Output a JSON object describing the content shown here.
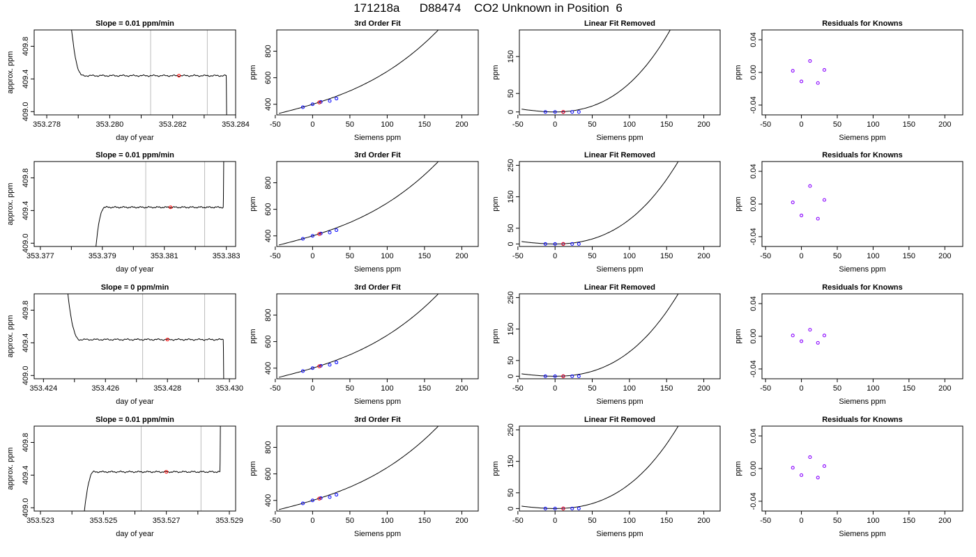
{
  "page": {
    "title": "171218a      D88474    CO2 Unknown in Position  6"
  },
  "chart_data": [
    {
      "type": "line",
      "row": 1,
      "panel": "timeseries",
      "title": "Slope =  0.01  ppm/min",
      "xlabel": "day of year",
      "ylabel": "approx. ppm",
      "xlim": [
        353.2776,
        353.284
      ],
      "ylim": [
        408.96,
        410.0
      ],
      "xticks": [
        353.278,
        353.28,
        353.282,
        353.284
      ],
      "xtick_labels": [
        "353.278",
        "353.280",
        "353.282",
        "353.284"
      ],
      "minor_xticks": [
        353.279,
        353.281,
        353.283
      ],
      "yticks": [
        409.0,
        409.4,
        409.8
      ],
      "ytick_labels": [
        "409.0",
        "409.4",
        "409.8"
      ],
      "level": 409.44,
      "start_x": 353.2787,
      "end_x": 353.2837,
      "start_kind": "down",
      "end_kind": "down",
      "vlines": [
        353.2813,
        353.2831
      ],
      "marker": {
        "x": 353.2822,
        "y": 409.44,
        "color": "#ff0000"
      }
    },
    {
      "type": "line",
      "row": 1,
      "panel": "fit",
      "title": "3rd Order Fit",
      "xlabel": "Siemens ppm",
      "ylabel": "ppm",
      "xlim": [
        -48,
        222
      ],
      "ylim": [
        320,
        960
      ],
      "xticks": [
        -50,
        0,
        50,
        100,
        150,
        200
      ],
      "xtick_labels": [
        "-50",
        "0",
        "50",
        "100",
        "150",
        "200"
      ],
      "yticks": [
        400,
        600,
        800
      ],
      "ytick_labels": [
        "400",
        "600",
        "800"
      ],
      "curve": {
        "x_range": [
          -45,
          215
        ],
        "coef": [
          400,
          1.7,
          0.005,
          2.75e-05
        ]
      },
      "known_points": [
        [
          -13,
          378
        ],
        [
          0,
          400
        ],
        [
          11,
          418
        ],
        [
          23,
          425
        ],
        [
          32,
          443
        ]
      ],
      "unknown_point": [
        9,
        414
      ],
      "line_color": "#000000",
      "point_color": "#0000ff",
      "unknown_color": "#ff0000"
    },
    {
      "type": "line",
      "row": 1,
      "panel": "linear_removed",
      "title": "Linear Fit Removed",
      "xlabel": "Siemens ppm",
      "ylabel": "ppm",
      "xlim": [
        -48,
        222
      ],
      "ylim": [
        -8,
        222
      ],
      "xticks": [
        -50,
        0,
        50,
        100,
        150,
        200
      ],
      "xtick_labels": [
        "-50",
        "0",
        "50",
        "100",
        "150",
        "200"
      ],
      "yticks": [
        0,
        50,
        150
      ],
      "ytick_labels": [
        "0",
        "50",
        "150"
      ],
      "curve": {
        "x_range": [
          -45,
          215
        ],
        "coef": [
          0,
          0,
          0.005,
          2.75e-05
        ]
      },
      "known_points": [
        [
          -13,
          0
        ],
        [
          0,
          0
        ],
        [
          11,
          0
        ],
        [
          23,
          0
        ],
        [
          32,
          0
        ]
      ],
      "unknown_point": [
        11,
        0
      ],
      "line_color": "#000000",
      "point_color": "#0000ff",
      "unknown_color": "#ff0000"
    },
    {
      "type": "scatter",
      "row": 1,
      "panel": "residuals",
      "title": "Residuals for Knowns",
      "xlabel": "Siemens ppm",
      "ylabel": "ppm",
      "xlim": [
        -55,
        225
      ],
      "ylim": [
        -0.052,
        0.052
      ],
      "xticks": [
        -50,
        0,
        50,
        100,
        150,
        200
      ],
      "xtick_labels": [
        "-50",
        "0",
        "50",
        "100",
        "150",
        "200"
      ],
      "yticks": [
        -0.04,
        0.0,
        0.04
      ],
      "ytick_labels": [
        "-0.04",
        "0.00",
        "0.04"
      ],
      "points": [
        [
          -12,
          0.002
        ],
        [
          0,
          -0.011
        ],
        [
          12,
          0.014
        ],
        [
          23,
          -0.013
        ],
        [
          32,
          0.003
        ]
      ],
      "point_color": "#8800ff"
    },
    {
      "type": "line",
      "row": 2,
      "panel": "timeseries",
      "title": "Slope =  0.01  ppm/min",
      "xlabel": "day of year",
      "ylabel": "approx. ppm",
      "xlim": [
        353.3768,
        353.3833
      ],
      "ylim": [
        408.96,
        410.0
      ],
      "xticks": [
        353.377,
        353.379,
        353.381,
        353.383
      ],
      "xtick_labels": [
        "353.377",
        "353.379",
        "353.381",
        "353.383"
      ],
      "minor_xticks": [
        353.378,
        353.38,
        353.382
      ],
      "yticks": [
        409.0,
        409.4,
        409.8
      ],
      "ytick_labels": [
        "409.0",
        "409.4",
        "409.8"
      ],
      "level": 409.44,
      "start_x": 353.3787,
      "end_x": 353.3829,
      "start_kind": "up",
      "end_kind": "up",
      "vlines": [
        353.3804,
        353.3823
      ],
      "marker": {
        "x": 353.3812,
        "y": 409.44,
        "color": "#ff0000"
      }
    },
    {
      "type": "line",
      "row": 2,
      "panel": "fit",
      "title": "3rd Order Fit",
      "xlabel": "Siemens ppm",
      "ylabel": "ppm",
      "xlim": [
        -48,
        222
      ],
      "ylim": [
        320,
        960
      ],
      "xticks": [
        -50,
        0,
        50,
        100,
        150,
        200
      ],
      "xtick_labels": [
        "-50",
        "0",
        "50",
        "100",
        "150",
        "200"
      ],
      "yticks": [
        400,
        600,
        800
      ],
      "ytick_labels": [
        "400",
        "600",
        "800"
      ],
      "curve": {
        "x_range": [
          -45,
          215
        ],
        "coef": [
          400,
          1.7,
          0.005,
          2.75e-05
        ]
      },
      "known_points": [
        [
          -13,
          378
        ],
        [
          0,
          400
        ],
        [
          11,
          418
        ],
        [
          23,
          425
        ],
        [
          32,
          443
        ]
      ],
      "unknown_point": [
        9,
        414
      ],
      "line_color": "#000000",
      "point_color": "#0000ff",
      "unknown_color": "#ff0000"
    },
    {
      "type": "line",
      "row": 2,
      "panel": "linear_removed",
      "title": "Linear Fit Removed",
      "xlabel": "Siemens ppm",
      "ylabel": "ppm",
      "xlim": [
        -48,
        222
      ],
      "ylim": [
        -8,
        262
      ],
      "xticks": [
        -50,
        0,
        50,
        100,
        150,
        200
      ],
      "xtick_labels": [
        "-50",
        "0",
        "50",
        "100",
        "150",
        "200"
      ],
      "yticks": [
        0,
        50,
        150,
        250
      ],
      "ytick_labels": [
        "0",
        "50",
        "150",
        "250"
      ],
      "curve": {
        "x_range": [
          -45,
          215
        ],
        "coef": [
          0,
          0,
          0.005,
          2.75e-05
        ]
      },
      "known_points": [
        [
          -13,
          0
        ],
        [
          0,
          0
        ],
        [
          11,
          0
        ],
        [
          23,
          0
        ],
        [
          32,
          0
        ]
      ],
      "unknown_point": [
        11,
        0
      ],
      "line_color": "#000000",
      "point_color": "#0000ff",
      "unknown_color": "#ff0000"
    },
    {
      "type": "scatter",
      "row": 2,
      "panel": "residuals",
      "title": "Residuals for Knowns",
      "xlabel": "Siemens ppm",
      "ylabel": "ppm",
      "xlim": [
        -55,
        225
      ],
      "ylim": [
        -0.052,
        0.052
      ],
      "xticks": [
        -50,
        0,
        50,
        100,
        150,
        200
      ],
      "xtick_labels": [
        "-50",
        "0",
        "50",
        "100",
        "150",
        "200"
      ],
      "yticks": [
        -0.04,
        0.0,
        0.04
      ],
      "ytick_labels": [
        "-0.04",
        "0.00",
        "0.04"
      ],
      "points": [
        [
          -12,
          0.002
        ],
        [
          0,
          -0.014
        ],
        [
          12,
          0.022
        ],
        [
          23,
          -0.018
        ],
        [
          32,
          0.005
        ]
      ],
      "point_color": "#8800ff"
    },
    {
      "type": "line",
      "row": 3,
      "panel": "timeseries",
      "title": "Slope =  0  ppm/min",
      "xlabel": "day of year",
      "ylabel": "approx. ppm",
      "xlim": [
        353.4237,
        353.4302
      ],
      "ylim": [
        408.96,
        410.0
      ],
      "xticks": [
        353.424,
        353.426,
        353.428,
        353.43
      ],
      "xtick_labels": [
        "353.424",
        "353.426",
        "353.428",
        "353.430"
      ],
      "minor_xticks": [
        353.425,
        353.427,
        353.429
      ],
      "yticks": [
        409.0,
        409.4,
        409.8
      ],
      "ytick_labels": [
        "409.0",
        "409.4",
        "409.8"
      ],
      "level": 409.44,
      "start_x": 353.4247,
      "end_x": 353.4298,
      "start_kind": "down",
      "end_kind": "down",
      "vlines": [
        353.4272,
        353.4292
      ],
      "marker": {
        "x": 353.428,
        "y": 409.44,
        "color": "#ff0000"
      }
    },
    {
      "type": "line",
      "row": 3,
      "panel": "fit",
      "title": "3rd Order Fit",
      "xlabel": "Siemens ppm",
      "ylabel": "ppm",
      "xlim": [
        -48,
        222
      ],
      "ylim": [
        320,
        960
      ],
      "xticks": [
        -50,
        0,
        50,
        100,
        150,
        200
      ],
      "xtick_labels": [
        "-50",
        "0",
        "50",
        "100",
        "150",
        "200"
      ],
      "yticks": [
        400,
        600,
        800
      ],
      "ytick_labels": [
        "400",
        "600",
        "800"
      ],
      "curve": {
        "x_range": [
          -45,
          215
        ],
        "coef": [
          400,
          1.7,
          0.005,
          2.75e-05
        ]
      },
      "known_points": [
        [
          -13,
          378
        ],
        [
          0,
          400
        ],
        [
          11,
          418
        ],
        [
          23,
          425
        ],
        [
          32,
          443
        ]
      ],
      "unknown_point": [
        9,
        414
      ],
      "line_color": "#000000",
      "point_color": "#0000ff",
      "unknown_color": "#ff0000"
    },
    {
      "type": "line",
      "row": 3,
      "panel": "linear_removed",
      "title": "Linear Fit Removed",
      "xlabel": "Siemens ppm",
      "ylabel": "ppm",
      "xlim": [
        -48,
        222
      ],
      "ylim": [
        -8,
        262
      ],
      "xticks": [
        -50,
        0,
        50,
        100,
        150,
        200
      ],
      "xtick_labels": [
        "-50",
        "0",
        "50",
        "100",
        "150",
        "200"
      ],
      "yticks": [
        0,
        50,
        150,
        250
      ],
      "ytick_labels": [
        "0",
        "50",
        "150",
        "250"
      ],
      "curve": {
        "x_range": [
          -45,
          215
        ],
        "coef": [
          0,
          0,
          0.005,
          2.75e-05
        ]
      },
      "known_points": [
        [
          -13,
          0
        ],
        [
          0,
          0
        ],
        [
          11,
          0
        ],
        [
          23,
          0
        ],
        [
          32,
          0
        ]
      ],
      "unknown_point": [
        11,
        0
      ],
      "line_color": "#000000",
      "point_color": "#0000ff",
      "unknown_color": "#ff0000"
    },
    {
      "type": "scatter",
      "row": 3,
      "panel": "residuals",
      "title": "Residuals for Knowns",
      "xlabel": "Siemens ppm",
      "ylabel": "ppm",
      "xlim": [
        -55,
        225
      ],
      "ylim": [
        -0.052,
        0.052
      ],
      "xticks": [
        -50,
        0,
        50,
        100,
        150,
        200
      ],
      "xtick_labels": [
        "-50",
        "0",
        "50",
        "100",
        "150",
        "200"
      ],
      "points": [
        [
          -12,
          0.001
        ],
        [
          0,
          -0.006
        ],
        [
          12,
          0.008
        ],
        [
          23,
          -0.008
        ],
        [
          32,
          0.001
        ]
      ],
      "yticks": [
        -0.04,
        0.0,
        0.04
      ],
      "ytick_labels": [
        "-0.04",
        "0.00",
        "0.04"
      ],
      "point_color": "#8800ff"
    },
    {
      "type": "line",
      "row": 4,
      "panel": "timeseries",
      "title": "Slope =  0.01  ppm/min",
      "xlabel": "day of year",
      "ylabel": "approx. ppm",
      "xlim": [
        353.5228,
        353.5292
      ],
      "ylim": [
        408.96,
        410.0
      ],
      "xticks": [
        353.523,
        353.525,
        353.527,
        353.529
      ],
      "xtick_labels": [
        "353.523",
        "353.525",
        "353.527",
        "353.529"
      ],
      "minor_xticks": [
        353.524,
        353.526,
        353.528
      ],
      "yticks": [
        409.0,
        409.4,
        409.8
      ],
      "ytick_labels": [
        "409.0",
        "409.4",
        "409.8"
      ],
      "level": 409.44,
      "start_x": 353.5243,
      "end_x": 353.5287,
      "start_kind": "up",
      "end_kind": "up",
      "vlines": [
        353.5262,
        353.5281
      ],
      "marker": {
        "x": 353.527,
        "y": 409.44,
        "color": "#ff0000"
      }
    },
    {
      "type": "line",
      "row": 4,
      "panel": "fit",
      "title": "3rd Order Fit",
      "xlabel": "Siemens ppm",
      "ylabel": "ppm",
      "xlim": [
        -48,
        222
      ],
      "ylim": [
        320,
        960
      ],
      "xticks": [
        -50,
        0,
        50,
        100,
        150,
        200
      ],
      "xtick_labels": [
        "-50",
        "0",
        "50",
        "100",
        "150",
        "200"
      ],
      "yticks": [
        400,
        600,
        800
      ],
      "ytick_labels": [
        "400",
        "600",
        "800"
      ],
      "curve": {
        "x_range": [
          -45,
          215
        ],
        "coef": [
          400,
          1.7,
          0.005,
          2.75e-05
        ]
      },
      "known_points": [
        [
          -13,
          378
        ],
        [
          0,
          400
        ],
        [
          11,
          418
        ],
        [
          23,
          425
        ],
        [
          32,
          443
        ]
      ],
      "unknown_point": [
        9,
        414
      ],
      "line_color": "#000000",
      "point_color": "#0000ff",
      "unknown_color": "#ff0000"
    },
    {
      "type": "line",
      "row": 4,
      "panel": "linear_removed",
      "title": "Linear Fit Removed",
      "xlabel": "Siemens ppm",
      "ylabel": "ppm",
      "xlim": [
        -48,
        222
      ],
      "ylim": [
        -8,
        262
      ],
      "xticks": [
        -50,
        0,
        50,
        100,
        150,
        200
      ],
      "xtick_labels": [
        "-50",
        "0",
        "50",
        "100",
        "150",
        "200"
      ],
      "yticks": [
        0,
        50,
        150,
        250
      ],
      "ytick_labels": [
        "0",
        "50",
        "150",
        "250"
      ],
      "curve": {
        "x_range": [
          -45,
          215
        ],
        "coef": [
          0,
          0,
          0.005,
          2.75e-05
        ]
      },
      "known_points": [
        [
          -13,
          0
        ],
        [
          0,
          0
        ],
        [
          11,
          0
        ],
        [
          23,
          0
        ],
        [
          32,
          0
        ]
      ],
      "unknown_point": [
        11,
        0
      ],
      "line_color": "#000000",
      "point_color": "#0000ff",
      "unknown_color": "#ff0000"
    },
    {
      "type": "scatter",
      "row": 4,
      "panel": "residuals",
      "title": "Residuals for Knowns",
      "xlabel": "Siemens ppm",
      "ylabel": "ppm",
      "xlim": [
        -55,
        225
      ],
      "ylim": [
        -0.052,
        0.052
      ],
      "xticks": [
        -50,
        0,
        50,
        100,
        150,
        200
      ],
      "xtick_labels": [
        "-50",
        "0",
        "50",
        "100",
        "150",
        "200"
      ],
      "yticks": [
        -0.04,
        0.0,
        0.04
      ],
      "ytick_labels": [
        "-0.04",
        "0.00",
        "0.04"
      ],
      "points": [
        [
          -12,
          0.001
        ],
        [
          0,
          -0.008
        ],
        [
          12,
          0.014
        ],
        [
          23,
          -0.011
        ],
        [
          32,
          0.003
        ]
      ],
      "point_color": "#8800ff"
    }
  ]
}
